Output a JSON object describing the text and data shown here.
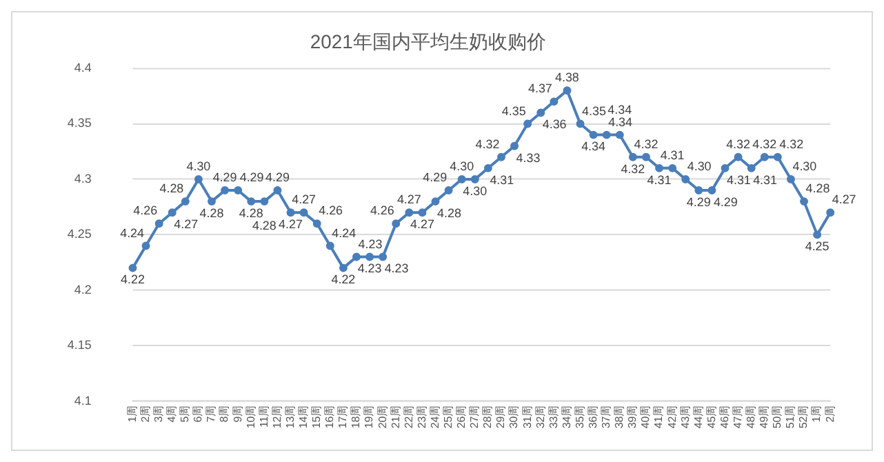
{
  "chart_data": {
    "type": "line",
    "title": "2021年国内平均生奶收购价",
    "categories": [
      "1周",
      "2周",
      "3周",
      "4周",
      "5周",
      "6周",
      "7周",
      "8周",
      "9周",
      "10周",
      "11周",
      "12周",
      "13周",
      "14周",
      "15周",
      "16周",
      "17周",
      "18周",
      "19周",
      "20周",
      "21周",
      "22周",
      "23周",
      "24周",
      "25周",
      "26周",
      "27周",
      "28周",
      "29周",
      "30周",
      "31周",
      "32周",
      "33周",
      "34周",
      "35周",
      "36周",
      "37周",
      "38周",
      "39周",
      "40周",
      "41周",
      "42周",
      "43周",
      "44周",
      "45周",
      "46周",
      "47周",
      "48周",
      "49周",
      "50周",
      "51周",
      "52周",
      "1周",
      "2周"
    ],
    "series": [
      {
        "color": "#4a7ebb",
        "values": [
          4.22,
          4.24,
          4.26,
          4.27,
          4.28,
          4.3,
          4.28,
          4.29,
          4.29,
          4.28,
          4.28,
          4.29,
          4.27,
          4.27,
          4.26,
          4.24,
          4.22,
          4.23,
          4.23,
          4.23,
          4.26,
          4.27,
          4.27,
          4.28,
          4.29,
          4.3,
          4.3,
          4.31,
          4.32,
          4.33,
          4.35,
          4.36,
          4.37,
          4.38,
          4.35,
          4.34,
          4.34,
          4.34,
          4.32,
          4.32,
          4.31,
          4.31,
          4.3,
          4.29,
          4.29,
          4.31,
          4.32,
          4.31,
          4.32,
          4.32,
          4.3,
          4.28,
          4.25,
          4.27
        ],
        "value_labels": [
          "4.22",
          "4.24",
          "4.26",
          "4.27",
          "4.28",
          "4.30",
          "4.28",
          "4.29",
          "4.29",
          "4.28",
          "4.28",
          "4.29",
          "4.27",
          "4.27",
          "4.26",
          "4.24",
          "4.22",
          "4.23",
          "4.23",
          "4.23",
          "4.26",
          "4.27",
          "4.27",
          "4.28",
          "4.29",
          "4.30",
          "4.30",
          "4.31",
          "4.32",
          "4.33",
          "4.35",
          "4.36",
          "4.37",
          "4.38",
          "4.35",
          "4.34",
          "4.34",
          "4.34",
          "4.32",
          "4.32",
          "4.31",
          "4.31",
          "4.30",
          "4.29",
          "4.29",
          "4.31",
          "4.32",
          "4.31",
          "4.32",
          "4.32",
          "4.30",
          "4.28",
          "4.25",
          "4.27"
        ]
      }
    ],
    "ylim": [
      4.1,
      4.4
    ],
    "yticks": [
      4.1,
      4.15,
      4.2,
      4.25,
      4.3,
      4.35,
      4.4
    ],
    "grid": "y",
    "legend": false,
    "marker": "circle",
    "line_style": "solid"
  }
}
